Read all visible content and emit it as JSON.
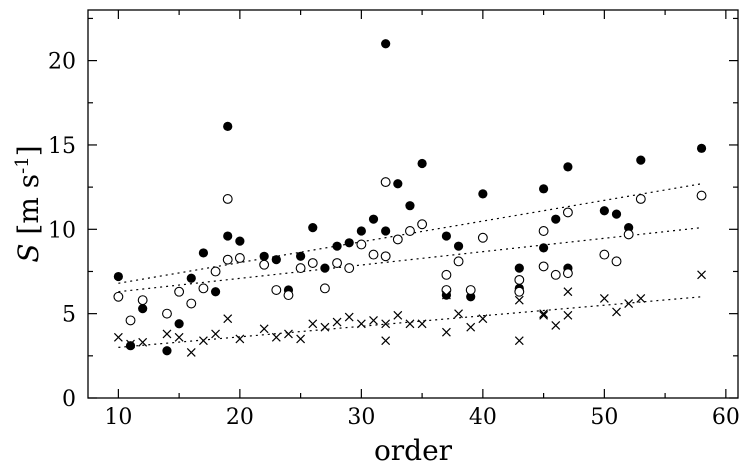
{
  "chart_data": {
    "type": "scatter",
    "xlabel": "order",
    "ylabel": {
      "symbol": "S",
      "unit": " [m s",
      "exp": "-1",
      "close": "]"
    },
    "xlim": [
      7.5,
      61
    ],
    "ylim": [
      0,
      23
    ],
    "xticks": [
      10,
      20,
      30,
      40,
      50,
      60
    ],
    "yticks": [
      0,
      5,
      10,
      15,
      20
    ],
    "x_tick_labels": [
      "10",
      "20",
      "30",
      "40",
      "50",
      "60"
    ],
    "y_tick_labels": [
      "0",
      "5",
      "10",
      "15",
      "20"
    ],
    "grid": false,
    "legend": false,
    "series": [
      {
        "marker": "filled-circle",
        "color": "#000000",
        "points": [
          [
            10,
            7.2
          ],
          [
            11,
            3.1
          ],
          [
            12,
            5.3
          ],
          [
            14,
            2.8
          ],
          [
            15,
            4.4
          ],
          [
            16,
            7.1
          ],
          [
            17,
            8.6
          ],
          [
            18,
            6.3
          ],
          [
            19,
            16.1
          ],
          [
            19,
            9.6
          ],
          [
            20,
            9.3
          ],
          [
            22,
            8.4
          ],
          [
            23,
            8.2
          ],
          [
            24,
            6.4
          ],
          [
            25,
            8.4
          ],
          [
            26,
            10.1
          ],
          [
            27,
            7.7
          ],
          [
            28,
            9.0
          ],
          [
            29,
            9.2
          ],
          [
            30,
            9.9
          ],
          [
            31,
            10.6
          ],
          [
            32,
            21.0
          ],
          [
            32,
            9.9
          ],
          [
            33,
            12.7
          ],
          [
            34,
            11.4
          ],
          [
            35,
            13.9
          ],
          [
            37,
            9.6
          ],
          [
            37,
            6.1
          ],
          [
            38,
            9.0
          ],
          [
            39,
            6.0
          ],
          [
            40,
            12.1
          ],
          [
            43,
            7.7
          ],
          [
            43,
            6.5
          ],
          [
            45,
            12.4
          ],
          [
            45,
            8.9
          ],
          [
            46,
            10.6
          ],
          [
            47,
            13.7
          ],
          [
            47,
            7.7
          ],
          [
            50,
            11.1
          ],
          [
            51,
            10.9
          ],
          [
            52,
            10.1
          ],
          [
            53,
            14.1
          ],
          [
            58,
            14.8
          ]
        ]
      },
      {
        "marker": "open-circle",
        "color": "#000000",
        "points": [
          [
            10,
            6.0
          ],
          [
            11,
            4.6
          ],
          [
            12,
            5.8
          ],
          [
            14,
            5.0
          ],
          [
            15,
            6.3
          ],
          [
            16,
            5.6
          ],
          [
            17,
            6.5
          ],
          [
            18,
            7.5
          ],
          [
            19,
            11.8
          ],
          [
            19,
            8.2
          ],
          [
            20,
            8.3
          ],
          [
            22,
            7.9
          ],
          [
            23,
            6.4
          ],
          [
            24,
            6.1
          ],
          [
            25,
            7.7
          ],
          [
            26,
            8.0
          ],
          [
            27,
            6.5
          ],
          [
            28,
            8.0
          ],
          [
            29,
            7.7
          ],
          [
            30,
            9.1
          ],
          [
            31,
            8.5
          ],
          [
            32,
            12.8
          ],
          [
            32,
            8.4
          ],
          [
            33,
            9.4
          ],
          [
            34,
            9.9
          ],
          [
            35,
            10.3
          ],
          [
            37,
            7.3
          ],
          [
            37,
            6.4
          ],
          [
            38,
            8.1
          ],
          [
            39,
            6.4
          ],
          [
            40,
            9.5
          ],
          [
            43,
            7.0
          ],
          [
            43,
            6.3
          ],
          [
            45,
            9.9
          ],
          [
            45,
            7.8
          ],
          [
            46,
            7.3
          ],
          [
            47,
            11.0
          ],
          [
            47,
            7.4
          ],
          [
            50,
            8.5
          ],
          [
            51,
            8.1
          ],
          [
            52,
            9.7
          ],
          [
            53,
            11.8
          ],
          [
            58,
            12.0
          ]
        ]
      },
      {
        "marker": "cross",
        "color": "#000000",
        "points": [
          [
            10,
            3.6
          ],
          [
            11,
            3.2
          ],
          [
            12,
            3.3
          ],
          [
            14,
            3.8
          ],
          [
            15,
            3.6
          ],
          [
            16,
            2.7
          ],
          [
            17,
            3.4
          ],
          [
            18,
            3.8
          ],
          [
            19,
            4.7
          ],
          [
            20,
            3.5
          ],
          [
            22,
            4.1
          ],
          [
            23,
            3.6
          ],
          [
            24,
            3.8
          ],
          [
            25,
            3.5
          ],
          [
            26,
            4.4
          ],
          [
            27,
            4.2
          ],
          [
            28,
            4.5
          ],
          [
            29,
            4.8
          ],
          [
            30,
            4.4
          ],
          [
            31,
            4.6
          ],
          [
            32,
            4.4
          ],
          [
            32,
            3.4
          ],
          [
            33,
            4.9
          ],
          [
            34,
            4.4
          ],
          [
            35,
            4.4
          ],
          [
            37,
            6.1
          ],
          [
            37,
            3.9
          ],
          [
            38,
            5.0
          ],
          [
            39,
            4.2
          ],
          [
            40,
            4.7
          ],
          [
            43,
            5.8
          ],
          [
            43,
            3.4
          ],
          [
            45,
            4.9
          ],
          [
            45,
            5.0
          ],
          [
            46,
            4.3
          ],
          [
            47,
            6.3
          ],
          [
            47,
            4.9
          ],
          [
            50,
            5.9
          ],
          [
            51,
            5.1
          ],
          [
            52,
            5.6
          ],
          [
            53,
            5.9
          ],
          [
            58,
            7.3
          ]
        ]
      }
    ],
    "trend_lines": [
      {
        "x": [
          10,
          58
        ],
        "y": [
          6.8,
          12.7
        ]
      },
      {
        "x": [
          10,
          58
        ],
        "y": [
          6.3,
          10.1
        ]
      },
      {
        "x": [
          10,
          58
        ],
        "y": [
          3.0,
          6.0
        ]
      }
    ]
  }
}
